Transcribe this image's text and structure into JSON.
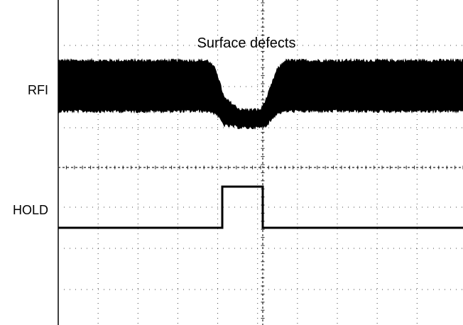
{
  "chart_data": {
    "type": "line",
    "title": "",
    "annotation": "Surface defects",
    "grid": true,
    "x_divisions": 10,
    "y_divisions": 8,
    "series": [
      {
        "name": "RFI",
        "description_levels": {
          "noise_band_high": 1.0,
          "noise_band_low": 0.0,
          "dip_level": -0.35
        },
        "x": [
          0,
          3.7,
          3.9,
          4.1,
          4.5,
          5.0,
          5.15,
          5.4,
          5.6,
          10
        ],
        "envelope_top": [
          1.0,
          1.0,
          0.8,
          0.2,
          -0.05,
          -0.05,
          0.2,
          0.8,
          1.0,
          1.0
        ],
        "envelope_bottom": [
          0.0,
          0.0,
          -0.05,
          -0.3,
          -0.35,
          -0.35,
          -0.3,
          -0.05,
          0.0,
          0.0
        ]
      },
      {
        "name": "HOLD",
        "x": [
          0,
          3.8,
          3.8,
          4.65,
          4.65,
          10
        ],
        "values": [
          0,
          0,
          1,
          1,
          0,
          0
        ]
      }
    ]
  },
  "colors": {
    "trace": "#000000",
    "grid": "#444444",
    "background": "#ffffff"
  }
}
